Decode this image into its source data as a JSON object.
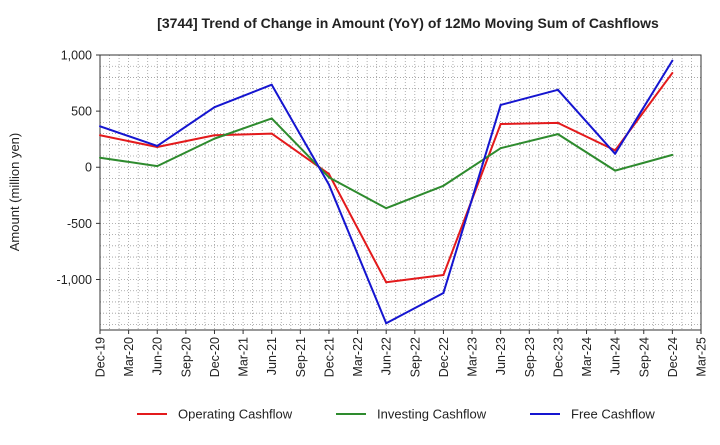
{
  "chart_data": {
    "type": "line",
    "title": "[3744]  Trend of Change in Amount (YoY) of 12Mo Moving Sum of Cashflows",
    "xlabel": "",
    "ylabel": "Amount (million yen)",
    "ylim": [
      -1450,
      1000
    ],
    "yticks": [
      1000,
      500,
      0,
      -500,
      -1000
    ],
    "ytick_labels": [
      "1,000",
      "500",
      "0",
      "-500",
      "-1,000"
    ],
    "x_tick_labels": [
      "Dec-19",
      "Mar-20",
      "Jun-20",
      "Sep-20",
      "Dec-20",
      "Mar-21",
      "Jun-21",
      "Sep-21",
      "Dec-21",
      "Mar-22",
      "Jun-22",
      "Sep-22",
      "Dec-22",
      "Mar-23",
      "Jun-23",
      "Sep-23",
      "Dec-23",
      "Mar-24",
      "Jun-24",
      "Sep-24",
      "Dec-24",
      "Mar-25"
    ],
    "point_indices": [
      0,
      2,
      4,
      6,
      8,
      10,
      12,
      14,
      16,
      18,
      20
    ],
    "grid": true,
    "legend_position": "bottom",
    "series": [
      {
        "name": "Operating Cashflow",
        "color": "#e31a1c",
        "values": [
          285,
          180,
          285,
          300,
          -60,
          -1025,
          -960,
          385,
          395,
          150,
          840
        ]
      },
      {
        "name": "Investing Cashflow",
        "color": "#2e8b2e",
        "values": [
          85,
          10,
          255,
          435,
          -90,
          -365,
          -165,
          170,
          295,
          -30,
          110
        ]
      },
      {
        "name": "Free Cashflow",
        "color": "#1515d0",
        "values": [
          365,
          190,
          535,
          735,
          -155,
          -1390,
          -1120,
          555,
          690,
          120,
          950
        ]
      }
    ]
  }
}
